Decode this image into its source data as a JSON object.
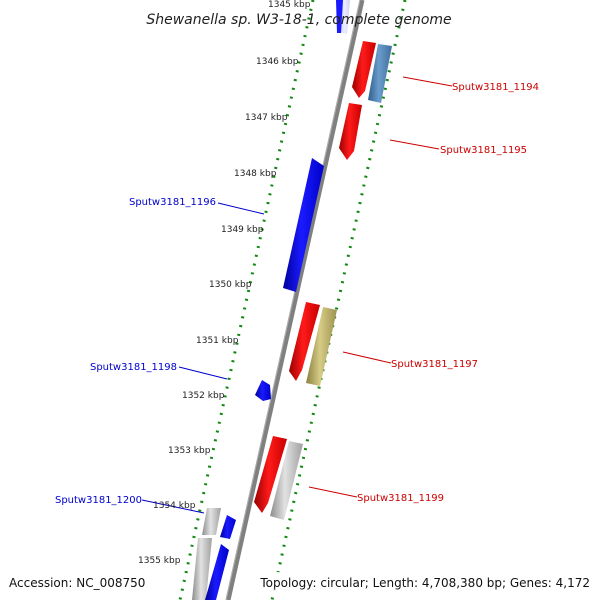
{
  "title": "Shewanella sp. W3-18-1, complete genome",
  "footer": {
    "accession": "Accession: NC_008750",
    "summary": "Topology: circular; Length: 4,708,380 bp; Genes: 4,172"
  },
  "ticks": [
    "1345 kbp",
    "1346 kbp",
    "1347 kbp",
    "1348 kbp",
    "1349 kbp",
    "1350 kbp",
    "1351 kbp",
    "1352 kbp",
    "1353 kbp",
    "1354 kbp",
    "1355 kbp"
  ],
  "labels": [
    {
      "text": "Sputw3181_1194",
      "strand": "forward"
    },
    {
      "text": "Sputw3181_1195",
      "strand": "forward"
    },
    {
      "text": "Sputw3181_1196",
      "strand": "reverse"
    },
    {
      "text": "Sputw3181_1197",
      "strand": "forward"
    },
    {
      "text": "Sputw3181_1198",
      "strand": "reverse"
    },
    {
      "text": "Sputw3181_1199",
      "strand": "forward"
    },
    {
      "text": "Sputw3181_1200",
      "strand": "reverse"
    }
  ],
  "colors": {
    "forward_label": "#cc0000",
    "reverse_label": "#0000cc",
    "forward_cds": "#ff0000",
    "reverse_cds": "#0000ff",
    "backbone": "#808080",
    "tick": "#118811",
    "steelblue_gene": "#4f86b8",
    "khaki_gene": "#b8ad62",
    "grey_gene": "#b4b4b4"
  }
}
